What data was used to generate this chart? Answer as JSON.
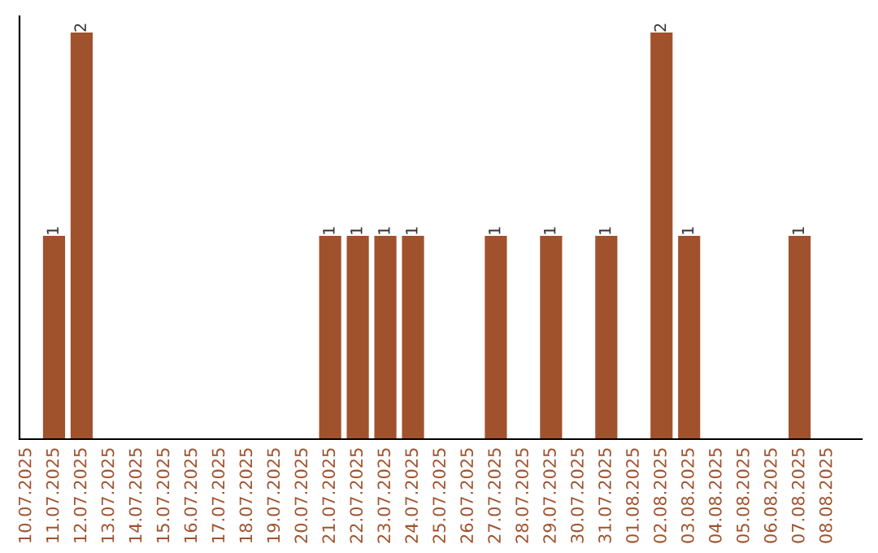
{
  "chart_data": {
    "type": "bar",
    "categories": [
      "10.07.2025",
      "11.07.2025",
      "12.07.2025",
      "13.07.2025",
      "14.07.2025",
      "15.07.2025",
      "16.07.2025",
      "17.07.2025",
      "18.07.2025",
      "19.07.2025",
      "20.07.2025",
      "21.07.2025",
      "22.07.2025",
      "23.07.2025",
      "24.07.2025",
      "25.07.2025",
      "26.07.2025",
      "27.07.2025",
      "28.07.2025",
      "29.07.2025",
      "30.07.2025",
      "31.07.2025",
      "01.08.2025",
      "02.08.2025",
      "03.08.2025",
      "04.08.2025",
      "05.08.2025",
      "06.08.2025",
      "07.08.2025",
      "08.08.2025"
    ],
    "values": [
      0,
      1,
      2,
      0,
      0,
      0,
      0,
      0,
      0,
      0,
      0,
      1,
      1,
      1,
      1,
      0,
      0,
      1,
      0,
      1,
      0,
      1,
      0,
      2,
      1,
      0,
      0,
      0,
      1,
      0
    ],
    "value_labels": [
      null,
      "1",
      "2",
      null,
      null,
      null,
      null,
      null,
      null,
      null,
      null,
      "1",
      "1",
      "1",
      "1",
      null,
      null,
      "1",
      null,
      "1",
      null,
      "1",
      null,
      "2",
      "1",
      null,
      null,
      null,
      "1",
      null
    ],
    "color": "#a0522d",
    "ylim": [
      0,
      2.08
    ],
    "tick_labels": "x",
    "grid": false,
    "legend": false
  }
}
